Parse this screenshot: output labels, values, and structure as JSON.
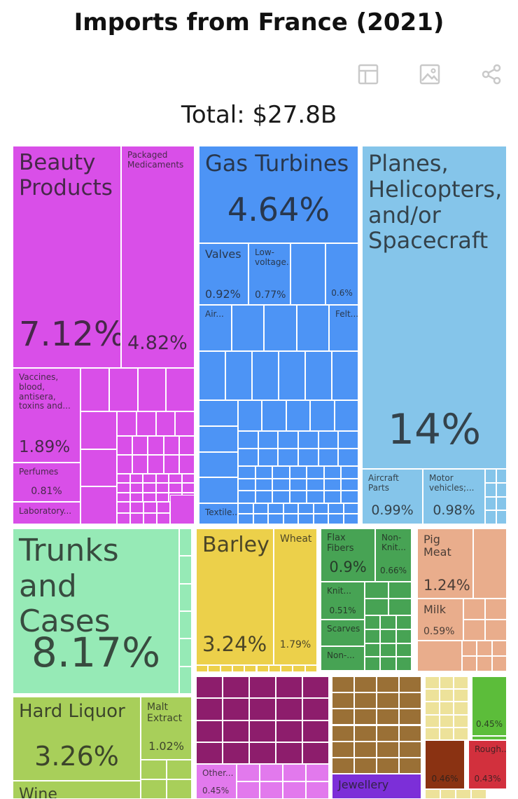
{
  "title": "Imports from France (2021)",
  "total_label": "Total: $27.8B",
  "toolbar": [
    {
      "name": "table-view-button",
      "icon": "table-icon"
    },
    {
      "name": "image-download-button",
      "icon": "image-icon"
    },
    {
      "name": "share-button",
      "icon": "share-icon"
    }
  ],
  "colors": {
    "chemicals": "#d94fe8",
    "machinery": "#4d94f5",
    "transportation": "#85c5ea",
    "leather": "#96eab6",
    "vegetable": "#ecd04a",
    "textiles": "#47a354",
    "animal": "#e9ad8c",
    "foodstuffs": "#a8cf5a",
    "metals": "#9a7036",
    "precious": "#7c2fd8",
    "plastics": "#e279ed",
    "paper": "#ede29a",
    "minerals": "#5cbd3a",
    "stone": "#8a3212",
    "rubber": "#d2303d",
    "dark_purple": "#8d1d6c"
  },
  "chart_data": {
    "type": "treemap",
    "unit": "%",
    "items": [
      {
        "name": "Beauty Products",
        "value": 7.12,
        "pct_label": "7.12%",
        "color": "#d94fe8"
      },
      {
        "name": "Packaged Medicaments",
        "value": 4.82,
        "pct_label": "4.82%",
        "color": "#d94fe8"
      },
      {
        "name": "Vaccines, blood, antisera, toxins and...",
        "value": 1.89,
        "pct_label": "1.89%",
        "color": "#d94fe8"
      },
      {
        "name": "Perfumes",
        "value": 0.81,
        "pct_label": "0.81%",
        "color": "#d94fe8"
      },
      {
        "name": "Laboratory...",
        "value": null,
        "pct_label": "",
        "color": "#d94fe8"
      },
      {
        "name": "Gas Turbines",
        "value": 4.64,
        "pct_label": "4.64%",
        "color": "#4d94f5"
      },
      {
        "name": "Valves",
        "value": 0.92,
        "pct_label": "0.92%",
        "color": "#4d94f5"
      },
      {
        "name": "Low-voltage...",
        "value": 0.77,
        "pct_label": "0.77%",
        "color": "#4d94f5"
      },
      {
        "name": "",
        "value": 0.6,
        "pct_label": "0.6%",
        "color": "#4d94f5"
      },
      {
        "name": "Air...",
        "value": null,
        "pct_label": "",
        "color": "#4d94f5"
      },
      {
        "name": "Felt...",
        "value": null,
        "pct_label": "",
        "color": "#4d94f5"
      },
      {
        "name": "Textile...",
        "value": null,
        "pct_label": "",
        "color": "#4d94f5"
      },
      {
        "name": "Planes, Helicopters, and/or Spacecraft",
        "value": 14,
        "pct_label": "14%",
        "color": "#85c5ea"
      },
      {
        "name": "Aircraft Parts",
        "value": 0.99,
        "pct_label": "0.99%",
        "color": "#85c5ea"
      },
      {
        "name": "Motor vehicles;...",
        "value": 0.98,
        "pct_label": "0.98%",
        "color": "#85c5ea"
      },
      {
        "name": "Trunks and Cases",
        "value": 8.17,
        "pct_label": "8.17%",
        "color": "#96eab6"
      },
      {
        "name": "Barley",
        "value": 3.24,
        "pct_label": "3.24%",
        "color": "#ecd04a"
      },
      {
        "name": "Wheat",
        "value": 1.79,
        "pct_label": "1.79%",
        "color": "#ecd04a"
      },
      {
        "name": "Flax Fibers",
        "value": 0.9,
        "pct_label": "0.9%",
        "color": "#47a354"
      },
      {
        "name": "Non-Knit...",
        "value": 0.66,
        "pct_label": "0.66%",
        "color": "#47a354"
      },
      {
        "name": "Knit...",
        "value": 0.51,
        "pct_label": "0.51%",
        "color": "#47a354"
      },
      {
        "name": "Scarves",
        "value": null,
        "pct_label": "",
        "color": "#47a354"
      },
      {
        "name": "Non-...",
        "value": null,
        "pct_label": "",
        "color": "#47a354"
      },
      {
        "name": "Pig Meat",
        "value": 1.24,
        "pct_label": "1.24%",
        "color": "#e9ad8c"
      },
      {
        "name": "Milk",
        "value": 0.59,
        "pct_label": "0.59%",
        "color": "#e9ad8c"
      },
      {
        "name": "Hard Liquor",
        "value": 3.26,
        "pct_label": "3.26%",
        "color": "#a8cf5a"
      },
      {
        "name": "Malt Extract",
        "value": 1.02,
        "pct_label": "1.02%",
        "color": "#a8cf5a"
      },
      {
        "name": "Wine",
        "value": null,
        "pct_label": "",
        "color": "#a8cf5a"
      },
      {
        "name": "Other...",
        "value": 0.45,
        "pct_label": "0.45%",
        "color": "#e279ed"
      },
      {
        "name": "Jewellery",
        "value": null,
        "pct_label": "",
        "color": "#7c2fd8"
      },
      {
        "name": "",
        "value": 0.45,
        "pct_label": "0.45%",
        "color": "#5cbd3a"
      },
      {
        "name": "",
        "value": 0.46,
        "pct_label": "0.46%",
        "color": "#8a3212"
      },
      {
        "name": "Rough...",
        "value": 0.43,
        "pct_label": "0.43%",
        "color": "#d2303d"
      }
    ]
  }
}
